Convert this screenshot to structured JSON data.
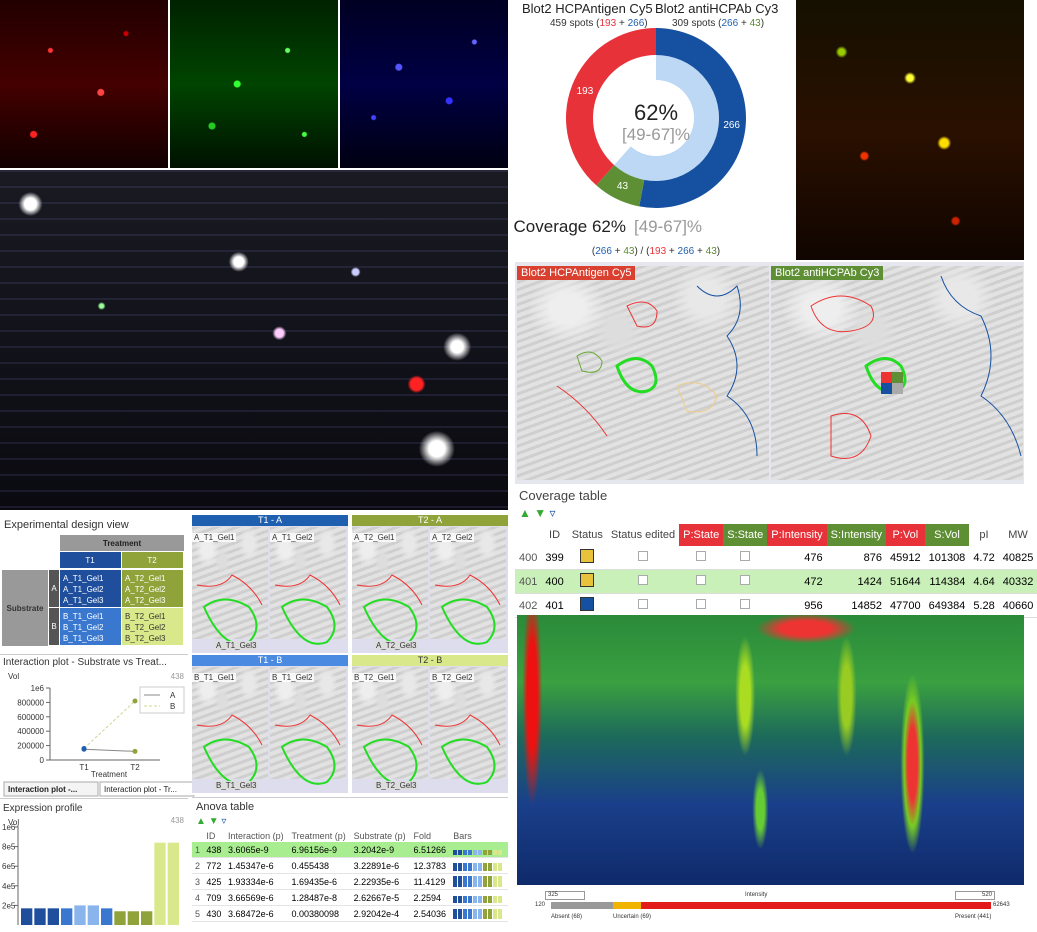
{
  "donut": {
    "left_title": "Blot2 HCPAntigen Cy5",
    "left_subtitle": [
      {
        "text": "459 spots (",
        "color": "#333333"
      },
      {
        "text": "193",
        "color": "#e8323a"
      },
      {
        "text": " + ",
        "color": "#333333"
      },
      {
        "text": "266",
        "color": "#1f5fb0"
      },
      {
        "text": ")",
        "color": "#333333"
      }
    ],
    "right_title": "Blot2 antiHCPAb Cy3",
    "right_subtitle": [
      {
        "text": "309 spots (",
        "color": "#333333"
      },
      {
        "text": "266",
        "color": "#1f5fb0"
      },
      {
        "text": " + ",
        "color": "#333333"
      },
      {
        "text": "43",
        "color": "#5a8a2c"
      },
      {
        "text": ")",
        "color": "#333333"
      }
    ],
    "segments": [
      {
        "value": 266,
        "color": "#1650a0"
      },
      {
        "value": 43,
        "color": "#5f8f35"
      },
      {
        "value": 193,
        "color": "#e8323a"
      }
    ],
    "inner_color": "#bcd8f5",
    "center_value": "62%",
    "center_range": "[49-67]%",
    "coverage_label": "Coverage 62%",
    "coverage_range": "[49-67]%",
    "formula": [
      {
        "text": "(",
        "color": "#333333"
      },
      {
        "text": "266",
        "color": "#1f5fb0"
      },
      {
        "text": " + ",
        "color": "#333333"
      },
      {
        "text": "43",
        "color": "#5a8a2c"
      },
      {
        "text": ") / (",
        "color": "#333333"
      },
      {
        "text": "193",
        "color": "#e8323a"
      },
      {
        "text": " + ",
        "color": "#333333"
      },
      {
        "text": "266",
        "color": "#1f5fb0"
      },
      {
        "text": " + ",
        "color": "#333333"
      },
      {
        "text": "43",
        "color": "#5a8a2c"
      },
      {
        "text": ")",
        "color": "#333333"
      }
    ]
  },
  "views_3d": {
    "left": "Blot2 HCPAntigen Cy5",
    "right": "Blot2 antiHCPAb Cy3"
  },
  "coverage_table": {
    "title": "Coverage table",
    "columns": [
      "ID",
      "Status",
      "Status edited",
      "P:State",
      "S:State",
      "P:Intensity",
      "S:Intensity",
      "P:Vol",
      "S:Vol",
      "pI",
      "MW"
    ],
    "rows": [
      [
        400,
        399,
        476,
        876,
        45912,
        101308,
        4.72,
        40825
      ],
      [
        401,
        400,
        472,
        1424,
        51644,
        114384,
        4.64,
        40332
      ],
      [
        402,
        401,
        956,
        14852,
        47700,
        649384,
        5.28,
        40660
      ]
    ],
    "status_colors": [
      "#e8c23a",
      "#e8c23a",
      "#1650a0"
    ],
    "selected_row": 1
  },
  "intensity_bar": {
    "low_input": "325",
    "selector": "Intensity",
    "high_input": "520",
    "min": "120",
    "max": "62643",
    "absent": "Absent (68)",
    "uncertain": "Uncertain (69)",
    "present": "Present (441)"
  },
  "design": {
    "title": "Experimental design view",
    "factor_col": "Treatment",
    "col_levels": [
      "T1",
      "T2"
    ],
    "factor_row": "Substrate",
    "row_levels": [
      "A",
      "B"
    ],
    "cells": [
      [
        [
          "A_T1_Gel1",
          "A_T1_Gel2",
          "A_T1_Gel3"
        ],
        [
          "A_T2_Gel1",
          "A_T2_Gel2",
          "A_T2_Gel3"
        ]
      ],
      [
        [
          "B_T1_Gel1",
          "B_T1_Gel2",
          "B_T1_Gel3"
        ],
        [
          "B_T2_Gel1",
          "B_T2_Gel2",
          "B_T2_Gel3"
        ]
      ]
    ]
  },
  "thumbnails": [
    {
      "header": "T1 - A",
      "color": "#1f5fb0",
      "gels": [
        "A_T1_Gel1",
        "A_T1_Gel2",
        "A_T1_Gel3"
      ]
    },
    {
      "header": "T2 - A",
      "color": "#8fa33a",
      "gels": [
        "A_T2_Gel1",
        "A_T2_Gel2",
        "A_T2_Gel3"
      ]
    },
    {
      "header": "T1 - B",
      "color": "#4a8ae0",
      "gels": [
        "B_T1_Gel1",
        "B_T1_Gel2",
        "B_T1_Gel3"
      ]
    },
    {
      "header": "T2 - B",
      "color": "#d9e88a",
      "gels": [
        "B_T2_Gel1",
        "B_T2_Gel2",
        "B_T2_Gel3"
      ]
    }
  ],
  "interaction_plot": {
    "type": "line",
    "title": "Interaction plot - Substrate vs Treat...",
    "y_label": "Vol",
    "spot": "438",
    "x_label": "Treatment",
    "categories": [
      "T1",
      "T2"
    ],
    "series": [
      {
        "name": "A",
        "color": "#888888",
        "values": [
          150000,
          120000
        ]
      },
      {
        "name": "B",
        "color": "#c8d890",
        "values": [
          160000,
          820000
        ]
      }
    ],
    "point_colors": [
      "#1f5fb0",
      "#8fa33a"
    ],
    "ylim": [
      0,
      1000000
    ],
    "yticks": [
      0,
      200000,
      400000,
      600000,
      800000,
      {
        "value": 1000000,
        "label": "1e6"
      }
    ],
    "tabs": [
      "Interaction plot -...",
      "Interaction plot - Tr..."
    ]
  },
  "expression_profile": {
    "type": "bar",
    "title": "Expression profile",
    "spot": "438",
    "y_label": "Vol",
    "categories": [
      null,
      null,
      null,
      null,
      null,
      null,
      null,
      null,
      null,
      null,
      null,
      null
    ],
    "values": [
      170000,
      170000,
      170000,
      170000,
      200000,
      200000,
      170000,
      140000,
      140000,
      140000,
      840000,
      840000
    ],
    "colors": [
      "#1f4f9c",
      "#1f4f9c",
      "#1f4f9c",
      "#3a78d0",
      "#8ab4ec",
      "#8ab4ec",
      "#3a78d0",
      "#8fa33a",
      "#8fa33a",
      "#8fa33a",
      "#d9e88a",
      "#d9e88a"
    ],
    "ylim": [
      0,
      1000000
    ],
    "yticks": [
      {
        "value": 200000,
        "label": "2e5"
      },
      {
        "value": 400000,
        "label": "4e5"
      },
      {
        "value": 600000,
        "label": "6e5"
      },
      {
        "value": 800000,
        "label": "8e5"
      },
      {
        "value": 1000000,
        "label": "1e6"
      }
    ]
  },
  "anova_table": {
    "title": "Anova table",
    "columns": [
      "ID",
      "Interaction (p)",
      "Treatment (p)",
      "Substrate (p)",
      "Fold",
      "Bars"
    ],
    "rows": [
      [
        1,
        438,
        "3.6065e-9",
        "6.96156e-9",
        "3.2042e-9",
        6.51266
      ],
      [
        2,
        772,
        "1.45347e-6",
        0.455438,
        "3.22891e-6",
        12.3783
      ],
      [
        3,
        425,
        "1.93334e-6",
        "1.69435e-6",
        "2.22935e-6",
        11.4129
      ],
      [
        4,
        709,
        "3.66569e-6",
        "1.28487e-8",
        "2.62667e-5",
        2.2594
      ],
      [
        5,
        430,
        "3.68472e-6",
        0.00380098,
        "2.92042e-4",
        2.54036
      ]
    ],
    "selected_row": 0
  }
}
